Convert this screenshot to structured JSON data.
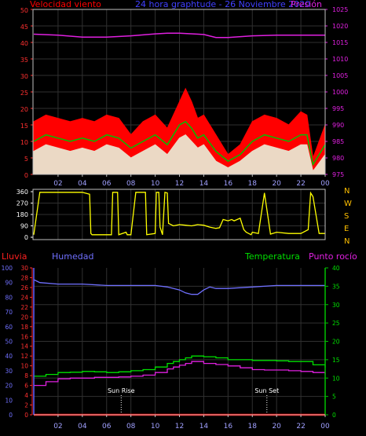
{
  "chart_data": [
    {
      "type": "area",
      "header": {
        "left": "Velocidad viento",
        "center": "24 hora graphtude - 26 Noviembre 2020",
        "right": "Presión"
      },
      "x_ticks": [
        "02",
        "04",
        "06",
        "08",
        "10",
        "12",
        "14",
        "16",
        "18",
        "20",
        "22",
        "00"
      ],
      "y_left": {
        "ticks": [
          "0",
          "5",
          "10",
          "15",
          "20",
          "25",
          "30",
          "35",
          "40",
          "45",
          "50"
        ],
        "range": [
          0,
          50
        ]
      },
      "y_right": {
        "ticks": [
          "975",
          "980",
          "985",
          "990",
          "995",
          "1000",
          "1005",
          "1010",
          "1015",
          "1020",
          "1025"
        ],
        "range": [
          975,
          1025
        ]
      },
      "series": [
        {
          "role": "gust",
          "color": "#ff0000",
          "x": [
            0,
            1,
            2,
            3,
            4,
            5,
            6,
            7,
            8,
            9,
            10,
            11,
            12,
            12.5,
            13,
            13.5,
            14,
            15,
            16,
            17,
            18,
            19,
            20,
            21,
            22,
            22.5,
            23,
            24
          ],
          "values": [
            16,
            18,
            17,
            16,
            17,
            16,
            18,
            17,
            12,
            16,
            18,
            14,
            22,
            26,
            22,
            17,
            18,
            12,
            6,
            9,
            16,
            18,
            17,
            15,
            19,
            18,
            5,
            15
          ]
        },
        {
          "role": "average",
          "color": "#00c000",
          "x": [
            0,
            1,
            2,
            3,
            4,
            5,
            6,
            7,
            8,
            9,
            10,
            11,
            12,
            12.5,
            13,
            13.5,
            14,
            15,
            16,
            17,
            18,
            19,
            20,
            21,
            22,
            22.5,
            23,
            24
          ],
          "values": [
            10,
            12,
            11,
            10,
            11,
            10,
            12,
            11,
            8,
            10,
            12,
            9,
            15,
            16,
            14,
            11,
            12,
            7,
            4,
            6,
            10,
            12,
            11,
            10,
            12,
            12,
            3,
            9
          ]
        },
        {
          "role": "speed",
          "color": "#e8ffe8",
          "x": [
            0,
            1,
            2,
            3,
            4,
            5,
            6,
            7,
            8,
            9,
            10,
            11,
            12,
            12.5,
            13,
            13.5,
            14,
            15,
            16,
            17,
            18,
            19,
            20,
            21,
            22,
            22.5,
            23,
            24
          ],
          "values": [
            7,
            9,
            8,
            7,
            8,
            7,
            9,
            8,
            5,
            7,
            9,
            6,
            11,
            12,
            10,
            8,
            9,
            4,
            2,
            4,
            7,
            9,
            8,
            7,
            9,
            9,
            1,
            6
          ]
        },
        {
          "role": "pressure",
          "axis": "right",
          "color": "#e020e0",
          "x": [
            0,
            2,
            4,
            6,
            8,
            10,
            11,
            12,
            14,
            15,
            16,
            18,
            20,
            22,
            24
          ],
          "values": [
            1017.5,
            1017.2,
            1016.6,
            1016.6,
            1017,
            1017.6,
            1017.8,
            1017.8,
            1017.4,
            1016.5,
            1016.5,
            1017,
            1017.2,
            1017.2,
            1017.2
          ]
        }
      ]
    },
    {
      "type": "line",
      "y_left": {
        "ticks": [
          "0",
          "90",
          "180",
          "270",
          "360"
        ],
        "range": [
          0,
          360
        ]
      },
      "y_right_labels": [
        "N",
        "W",
        "S",
        "E",
        "N"
      ],
      "series": [
        {
          "role": "direction",
          "color": "#ffff00",
          "x": [
            0,
            0.5,
            4,
            4.6,
            4.7,
            4.8,
            6.4,
            6.5,
            6.9,
            7,
            7.6,
            7.7,
            8,
            8.4,
            9.2,
            9.3,
            10,
            10.1,
            10.3,
            10.4,
            10.6,
            10.8,
            11,
            11.1,
            11.5,
            12,
            12.5,
            13,
            13.5,
            14,
            14.5,
            15,
            15.3,
            15.6,
            16,
            16.3,
            16.5,
            17,
            17.3,
            17.5,
            17.9,
            18,
            18.5,
            19,
            19.5,
            20,
            21,
            22,
            22.6,
            22.8,
            23,
            23.5,
            24
          ],
          "values": [
            20,
            355,
            355,
            340,
            30,
            20,
            20,
            355,
            355,
            20,
            40,
            20,
            20,
            355,
            355,
            20,
            30,
            355,
            355,
            80,
            20,
            355,
            350,
            110,
            90,
            100,
            95,
            90,
            100,
            95,
            80,
            70,
            75,
            140,
            130,
            140,
            130,
            150,
            60,
            40,
            20,
            40,
            30,
            350,
            25,
            40,
            30,
            30,
            60,
            350,
            320,
            30,
            30
          ]
        }
      ]
    },
    {
      "type": "line",
      "header": {
        "rain": "Lluvia",
        "humidity": "Humedad",
        "temperature": "Temperatura",
        "dewpoint": "Punto rocío"
      },
      "annotations": {
        "sunrise": "Sun Rise",
        "sunset": "Sun Set"
      },
      "x_ticks": [
        "02",
        "04",
        "06",
        "08",
        "10",
        "12",
        "14",
        "16",
        "18",
        "20",
        "22",
        "00"
      ],
      "y_rain": {
        "ticks": [
          "0",
          "2",
          "4",
          "6",
          "8",
          "10",
          "12",
          "14",
          "16",
          "18",
          "20",
          "22",
          "24",
          "26",
          "28",
          "30"
        ],
        "range": [
          0,
          30
        ]
      },
      "y_humidity": {
        "ticks": [
          "0",
          "10",
          "20",
          "30",
          "40",
          "50",
          "60",
          "70",
          "80",
          "90",
          "100"
        ],
        "range": [
          0,
          100
        ]
      },
      "y_temperature": {
        "ticks": [
          "0",
          "5",
          "10",
          "15",
          "20",
          "25",
          "30",
          "35",
          "40"
        ],
        "range": [
          0,
          40
        ]
      },
      "series": [
        {
          "role": "humidity",
          "color": "#7070ff",
          "x": [
            0,
            0.5,
            2,
            4,
            6,
            8,
            10,
            11,
            12,
            12.5,
            13,
            13.5,
            14,
            14.5,
            15,
            16,
            18,
            20,
            22,
            24
          ],
          "values": [
            92,
            90,
            89,
            89,
            88,
            88,
            88,
            87,
            85,
            83,
            82,
            82,
            85,
            87,
            86,
            86,
            87,
            88,
            88,
            88
          ]
        },
        {
          "role": "temperature",
          "color": "#00e000",
          "x": [
            0,
            1,
            2,
            3,
            4,
            5,
            6,
            7,
            8,
            9,
            10,
            11,
            11.5,
            12,
            12.5,
            13,
            13.5,
            14,
            15,
            16,
            17,
            18,
            19,
            20,
            21,
            22,
            23,
            24
          ],
          "values": [
            10.5,
            11,
            11.5,
            11.6,
            11.8,
            11.7,
            11.5,
            11.7,
            12,
            12.3,
            13,
            14,
            14.5,
            15,
            15.5,
            16,
            16,
            15.8,
            15.5,
            15,
            15,
            14.8,
            14.8,
            14.7,
            14.5,
            14.5,
            13.6,
            12.9
          ]
        },
        {
          "role": "dewpoint",
          "color": "#e020e0",
          "x": [
            0,
            1,
            2,
            3,
            4,
            5,
            6,
            7,
            8,
            9,
            10,
            11,
            11.5,
            12,
            12.5,
            13,
            13.5,
            14,
            15,
            16,
            17,
            18,
            19,
            20,
            21,
            22,
            23,
            24
          ],
          "values": [
            8,
            9,
            9.8,
            10,
            10,
            10.2,
            10.2,
            10.3,
            10.5,
            10.8,
            11.5,
            12.5,
            13,
            13.5,
            14,
            14.5,
            14.5,
            14,
            13.7,
            13.3,
            12.8,
            12.3,
            12.2,
            12.2,
            12,
            11.8,
            11.5,
            11
          ]
        },
        {
          "role": "rain",
          "color": "#ff0000",
          "x": [
            0,
            24
          ],
          "values": [
            0,
            0
          ]
        }
      ],
      "sun_times": {
        "sunrise_hour": 7.2,
        "sunset_hour": 19.2
      }
    }
  ]
}
